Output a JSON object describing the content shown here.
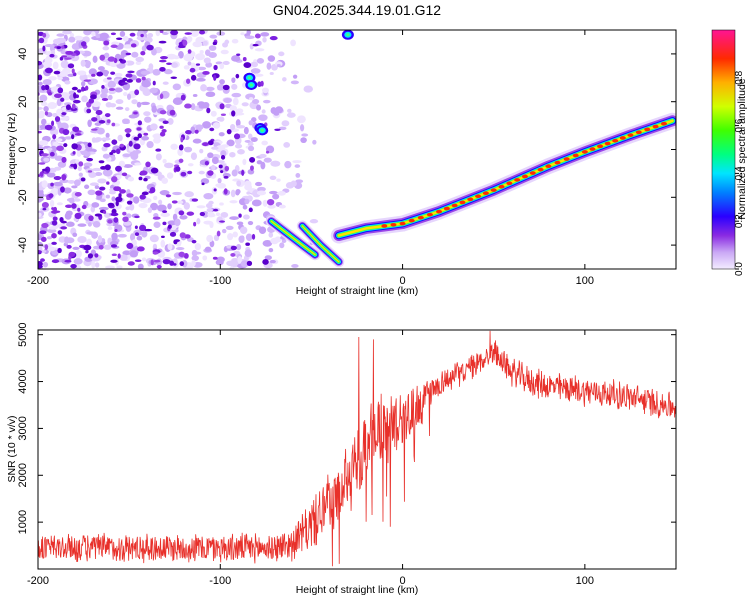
{
  "title": "GN04.2025.344.19.01.G12",
  "chart_data": [
    {
      "type": "heatmap",
      "name": "spectrogram",
      "xlabel": "Height of straight line (km)",
      "ylabel": "Frequency (Hz)",
      "xlim": [
        -200,
        150
      ],
      "ylim": [
        -50,
        50
      ],
      "xticks": [
        "-200",
        "-100",
        "0",
        "100"
      ],
      "xtick_values": [
        -200,
        -100,
        0,
        100
      ],
      "yticks": [
        "-40",
        "-20",
        "0",
        "20",
        "40"
      ],
      "ytick_values": [
        -40,
        -20,
        0,
        20,
        40
      ],
      "colorbar": {
        "label": "Normalized spectral amplitude",
        "range": [
          0,
          1
        ],
        "ticks": [
          "0.0",
          "0.2",
          "0.4",
          "0.6",
          "0.8"
        ],
        "tick_values": [
          0.0,
          0.2,
          0.4,
          0.6,
          0.8
        ],
        "colors": [
          "#ffffff",
          "#d8b4f8",
          "#8a2be2",
          "#0000ff",
          "#00bfff",
          "#00ff7f",
          "#adff2f",
          "#ffff00",
          "#ffa500",
          "#ff0000",
          "#ff1493"
        ]
      },
      "noise_region_x": [
        -200,
        -60
      ],
      "main_track": [
        {
          "x": -35,
          "y": -36
        },
        {
          "x": -20,
          "y": -33
        },
        {
          "x": -10,
          "y": -32
        },
        {
          "x": 0,
          "y": -31
        },
        {
          "x": 20,
          "y": -26
        },
        {
          "x": 50,
          "y": -17
        },
        {
          "x": 80,
          "y": -7
        },
        {
          "x": 100,
          "y": -1
        },
        {
          "x": 125,
          "y": 6
        },
        {
          "x": 148,
          "y": 12
        }
      ],
      "diagonal_traces": [
        [
          {
            "x": -72,
            "y": -30
          },
          {
            "x": -55,
            "y": -40
          },
          {
            "x": -48,
            "y": -44
          }
        ],
        [
          {
            "x": -55,
            "y": -32
          },
          {
            "x": -45,
            "y": -40
          },
          {
            "x": -35,
            "y": -47
          }
        ]
      ],
      "blobs": [
        {
          "x": -84,
          "y": 30
        },
        {
          "x": -83,
          "y": 27
        },
        {
          "x": -78,
          "y": 9
        },
        {
          "x": -77,
          "y": 8
        },
        {
          "x": -30,
          "y": 48
        }
      ]
    },
    {
      "type": "line",
      "name": "snr",
      "xlabel": "Height of straight line (km)",
      "ylabel": "SNR (10 * v/v)",
      "xlim": [
        -200,
        150
      ],
      "ylim": [
        0,
        5100
      ],
      "xticks": [
        "-200",
        "-100",
        "0",
        "100"
      ],
      "xtick_values": [
        -200,
        -100,
        0,
        100
      ],
      "yticks": [
        "1000",
        "2000",
        "3000",
        "4000",
        "5000"
      ],
      "ytick_values": [
        1000,
        2000,
        3000,
        4000,
        5000
      ],
      "color": "#e8302a",
      "envelope": {
        "x": [
          -200,
          -150,
          -100,
          -70,
          -60,
          -50,
          -40,
          -30,
          -20,
          -10,
          0,
          10,
          20,
          30,
          40,
          50,
          60,
          70,
          80,
          100,
          120,
          150
        ],
        "mean": [
          450,
          450,
          450,
          450,
          550,
          950,
          1400,
          1900,
          2600,
          3000,
          3300,
          3500,
          3950,
          4150,
          4350,
          4650,
          4200,
          4000,
          3900,
          3800,
          3700,
          3450
        ],
        "spread": [
          350,
          350,
          350,
          350,
          400,
          600,
          800,
          900,
          950,
          900,
          800,
          500,
          350,
          300,
          300,
          300,
          350,
          350,
          350,
          350,
          350,
          350
        ]
      },
      "peaks": [
        {
          "x": -24,
          "y": 4950
        },
        {
          "x": -16,
          "y": 4900
        },
        {
          "x": 48,
          "y": 5080
        }
      ]
    }
  ]
}
